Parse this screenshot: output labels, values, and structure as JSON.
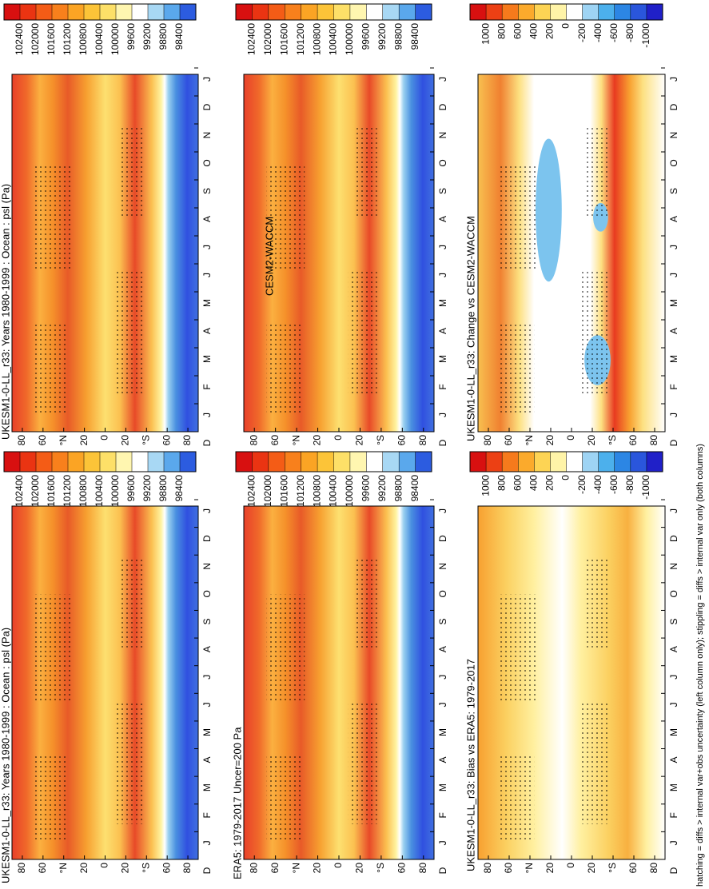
{
  "panels": [
    {
      "title": "UKESM1-0-LL_r33: Years 1980-1999 : Ocean : psl (Pa)",
      "colorbar": [
        102400,
        102000,
        101600,
        101200,
        100800,
        100400,
        100000,
        99600,
        99200,
        98800,
        98400
      ]
    },
    {
      "title": "UKESM1-0-LL_r33: Years 1980-1999 : Ocean : psl (Pa)",
      "colorbar": [
        102400,
        102000,
        101600,
        101200,
        100800,
        100400,
        100000,
        99600,
        99200,
        98800,
        98400
      ]
    },
    {
      "title": "ERA5: 1979-2017 Uncer=200 Pa",
      "colorbar": [
        102400,
        102000,
        101600,
        101200,
        100800,
        100400,
        100000,
        99600,
        99200,
        98800,
        98400
      ]
    },
    {
      "title": "CESM2-WACCM",
      "colorbar": [
        102400,
        102000,
        101600,
        101200,
        100800,
        100400,
        100000,
        99600,
        99200,
        98800,
        98400
      ]
    },
    {
      "title": "UKESM1-0-LL_r33: Bias vs ERA5: 1979-2017",
      "colorbar": [
        1000,
        800,
        600,
        400,
        200,
        0,
        -200,
        -400,
        -600,
        -800,
        -1000
      ]
    },
    {
      "title": "UKESM1-0-LL_r33: Change vs CESM2-WACCM",
      "colorbar": [
        1000,
        800,
        600,
        400,
        200,
        0,
        -200,
        -400,
        -600,
        -800,
        -1000
      ]
    }
  ],
  "latitude_labels": [
    "80",
    "60",
    "°N",
    "20",
    "0",
    "20",
    "°S",
    "60",
    "80"
  ],
  "months": [
    "D",
    "J",
    "F",
    "M",
    "A",
    "M",
    "J",
    "J",
    "A",
    "S",
    "O",
    "N",
    "D",
    "J"
  ],
  "footer": "hatching = diffs > internal var+obs uncertainty (left column only); stippling = diffs > internal var only (both columns)"
}
